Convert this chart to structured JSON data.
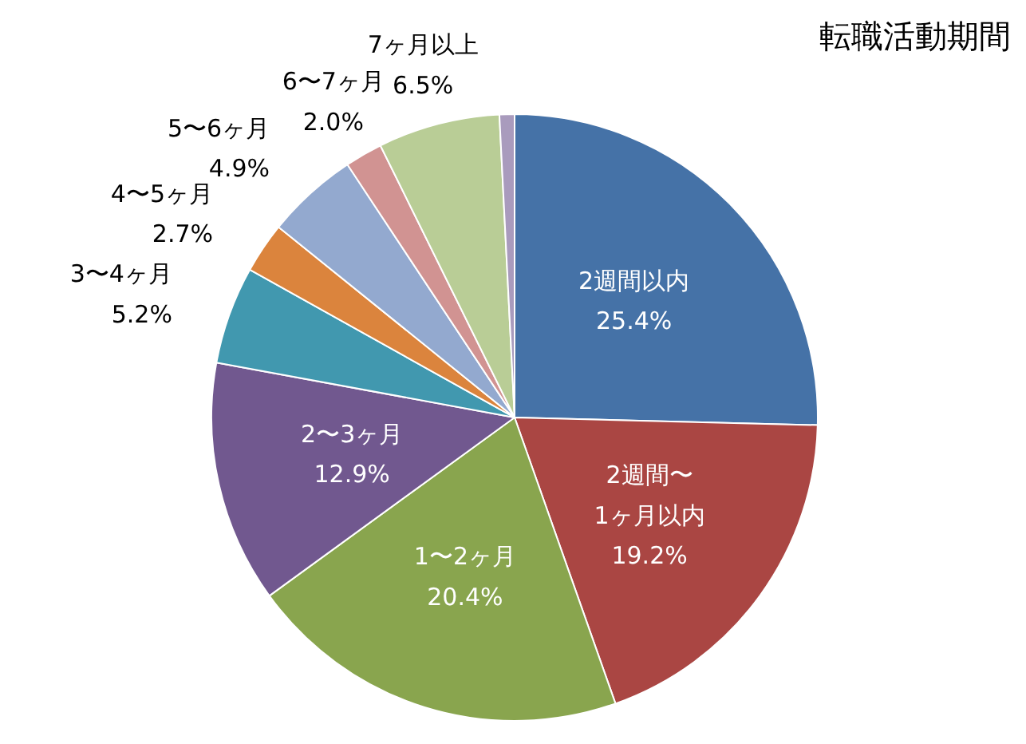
{
  "chart_data": {
    "type": "pie",
    "title": "転職活動期間",
    "categories": [
      "2週間以内",
      "2週間〜\n1ヶ月以内",
      "1〜2ヶ月",
      "2〜3ヶ月",
      "3〜4ヶ月",
      "4〜5ヶ月",
      "5〜6ヶ月",
      "6〜7ヶ月",
      "7ヶ月以上",
      null
    ],
    "values": [
      25.4,
      19.2,
      20.4,
      12.9,
      5.2,
      2.7,
      4.9,
      2.0,
      6.5,
      0.8
    ],
    "value_labels": [
      "25.4%",
      "19.2%",
      "20.4%",
      "12.9%",
      "5.2%",
      "2.7%",
      "4.9%",
      "2.0%",
      "6.5%",
      null
    ],
    "colors": [
      "#4572a7",
      "#aa4643",
      "#89a54e",
      "#71588f",
      "#4198af",
      "#db843d",
      "#93a9cf",
      "#d19392",
      "#b9cd96",
      "#a99bbd"
    ]
  }
}
